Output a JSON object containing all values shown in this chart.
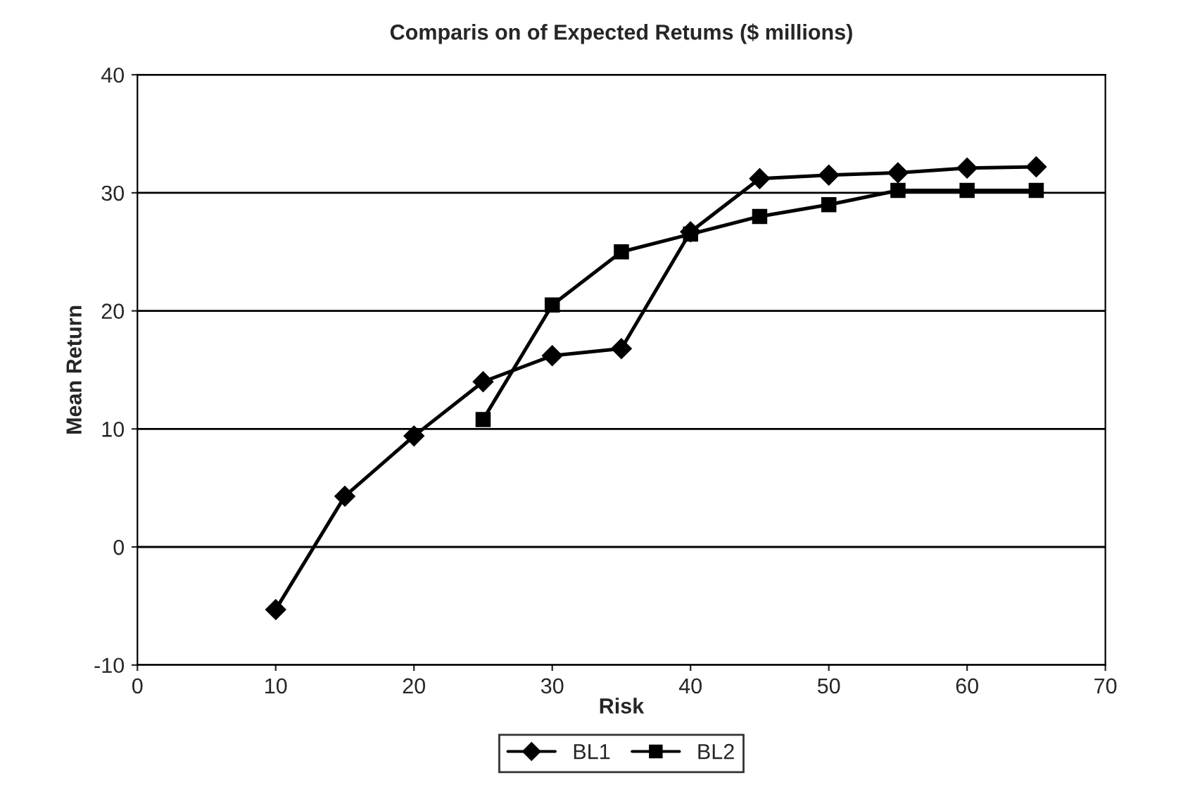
{
  "chart_data": {
    "type": "line",
    "title": "Comparis on of Expected Retums ($ millions)",
    "xlabel": "Risk",
    "ylabel": "Mean Return",
    "series": [
      {
        "name": "BL1",
        "color": "#000000",
        "marker": "diamond",
        "x": [
          10,
          15,
          20,
          25,
          30,
          35,
          40,
          45,
          50,
          55,
          60,
          65
        ],
        "values": [
          -5.3,
          4.3,
          9.4,
          14,
          16.2,
          16.8,
          26.7,
          31.2,
          31.5,
          31.7,
          32.1,
          32.2
        ]
      },
      {
        "name": "BL2",
        "color": "#000000",
        "marker": "square",
        "x": [
          25,
          30,
          35,
          40,
          45,
          50,
          55,
          60,
          65
        ],
        "values": [
          10.8,
          20.5,
          25,
          26.5,
          28,
          29,
          30.2,
          30.2,
          30.2
        ]
      }
    ],
    "xlim": [
      0,
      70
    ],
    "xticks": [
      0,
      10,
      20,
      30,
      40,
      50,
      60,
      70
    ],
    "ylim": [
      -10,
      40
    ],
    "yticks": [
      -10,
      0,
      10,
      20,
      30,
      40
    ],
    "grid": "y",
    "legend": "bottom",
    "line_style": "solid"
  }
}
